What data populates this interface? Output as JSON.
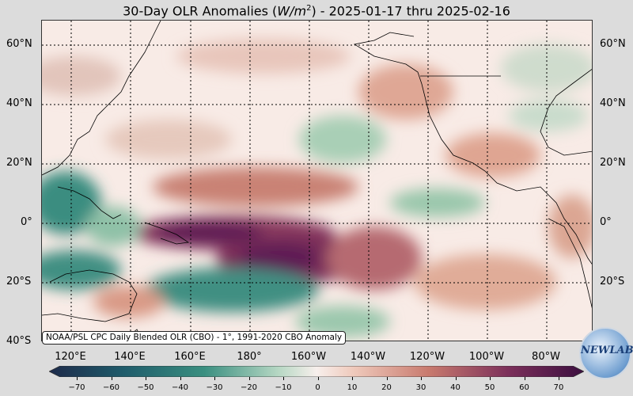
{
  "title": {
    "prefix": "30-Day OLR Anomalies (",
    "unit_base": "W/m",
    "unit_exp": "2",
    "suffix": ") - 2025-01-17 thru 2025-02-16"
  },
  "lat_labels": [
    "60°N",
    "40°N",
    "20°N",
    "0°",
    "20°S",
    "40°S"
  ],
  "lon_labels": [
    "120°E",
    "140°E",
    "160°E",
    "180°",
    "160°W",
    "140°W",
    "120°W",
    "100°W",
    "80°W"
  ],
  "credit": "NOAA/PSL CPC Daily Blended OLR (CBO) - 1°, 1991-2020 CBO Anomaly",
  "colorbar": {
    "ticks": [
      "−70",
      "−60",
      "−50",
      "−40",
      "−30",
      "−20",
      "−10",
      "0",
      "10",
      "20",
      "30",
      "40",
      "50",
      "60",
      "70"
    ],
    "min": -70,
    "max": 70,
    "negative_color": "#1c6e6a",
    "positive_color": "#5e1a55",
    "neutral_color": "#f7efec"
  },
  "logo": {
    "text": "NEWLAB"
  }
}
